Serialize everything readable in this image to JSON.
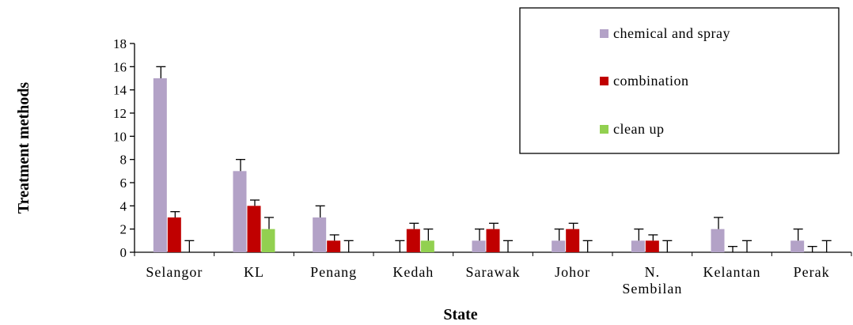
{
  "chart_data": {
    "type": "bar",
    "title": "",
    "xlabel": "State",
    "ylabel": "Treatment methods",
    "ylim": [
      0,
      18
    ],
    "yticks": [
      "0",
      "2",
      "4",
      "6",
      "8",
      "10",
      "12",
      "14",
      "16",
      "18"
    ],
    "categories": [
      [
        "Selangor"
      ],
      [
        "KL"
      ],
      [
        "Penang"
      ],
      [
        "Kedah"
      ],
      [
        "Sarawak"
      ],
      [
        "Johor"
      ],
      [
        "N.",
        "Sembilan"
      ],
      [
        "Kelantan"
      ],
      [
        "Perak"
      ]
    ],
    "series": [
      {
        "name": "chemical and spray",
        "color": "#b3a2c7",
        "values": [
          15,
          7,
          3,
          0,
          1,
          1,
          1,
          2,
          1
        ],
        "errors": [
          1,
          1,
          1,
          1,
          1,
          1,
          1,
          1,
          1
        ]
      },
      {
        "name": "combination",
        "color": "#c00000",
        "values": [
          3,
          4,
          1,
          2,
          2,
          2,
          1,
          0,
          0
        ],
        "errors": [
          0.5,
          0.5,
          0.5,
          0.5,
          0.5,
          0.5,
          0.5,
          0.5,
          0.5
        ]
      },
      {
        "name": "clean up",
        "color": "#92d050",
        "values": [
          0,
          2,
          0,
          1,
          0,
          0,
          0,
          0,
          0
        ],
        "errors": [
          1,
          1,
          1,
          1,
          1,
          1,
          1,
          1,
          1
        ]
      }
    ],
    "grid": false,
    "legend": "top-right"
  }
}
